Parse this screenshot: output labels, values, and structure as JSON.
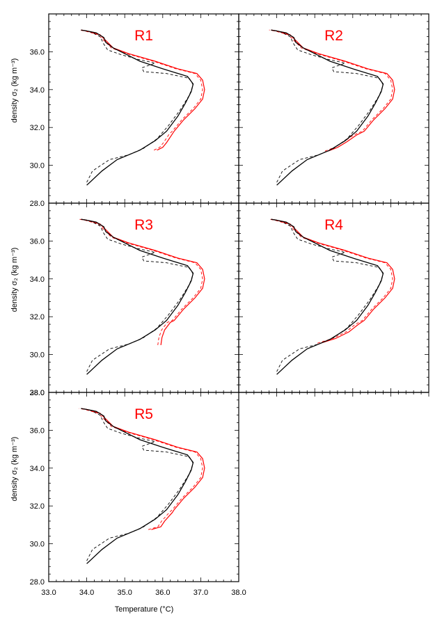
{
  "chart_data": {
    "type": "line",
    "xlabel": "Temperature (°C)",
    "ylabel": "density σ₂ (kg m⁻³)",
    "xlim": [
      33.0,
      38.0
    ],
    "ylim": [
      38.0,
      28.0
    ],
    "x_ticks": [
      "33.0",
      "34.0",
      "35.0",
      "36.0",
      "37.0",
      "38.0"
    ],
    "y_ticks": [
      "28.0",
      "30.0",
      "32.0",
      "34.0",
      "36.0",
      "38.0"
    ],
    "colors": {
      "observed": "#000000",
      "model": "#ff0000"
    },
    "panels": [
      {
        "label": "R1",
        "row": 0,
        "col": 0,
        "y_ticks_shown": [
          "28.0",
          "30.0",
          "32.0",
          "34.0",
          "36.0"
        ],
        "show_ylabel": true,
        "show_xlabels": false,
        "red_shift": 0.18,
        "red_top": [
          [
            35.85,
            30.8
          ],
          [
            36.0,
            30.95
          ],
          [
            36.1,
            31.2
          ],
          [
            36.25,
            31.65
          ]
        ]
      },
      {
        "label": "R2",
        "row": 0,
        "col": 1,
        "y_ticks_shown": [],
        "show_ylabel": false,
        "show_xlabels": false,
        "red_shift": 0.2,
        "red_top": [
          [
            35.35,
            30.75
          ],
          [
            35.6,
            30.95
          ],
          [
            35.85,
            31.25
          ],
          [
            36.1,
            31.6
          ]
        ]
      },
      {
        "label": "R3",
        "row": 1,
        "col": 0,
        "y_ticks_shown": [
          "28.0",
          "30.0",
          "32.0",
          "34.0",
          "36.0"
        ],
        "show_ylabel": true,
        "show_xlabels": false,
        "red_shift": 0.2,
        "red_top": [
          [
            35.95,
            30.5
          ],
          [
            35.98,
            30.9
          ],
          [
            36.05,
            31.3
          ],
          [
            36.2,
            31.7
          ]
        ]
      },
      {
        "label": "R4",
        "row": 1,
        "col": 1,
        "y_ticks_shown": [],
        "show_ylabel": false,
        "show_xlabels": false,
        "red_shift": 0.22,
        "red_top": [
          [
            35.15,
            30.6
          ],
          [
            35.55,
            30.85
          ],
          [
            35.9,
            31.2
          ],
          [
            36.15,
            31.6
          ]
        ]
      },
      {
        "label": "R5",
        "row": 2,
        "col": 0,
        "y_ticks_shown": [
          "28.0",
          "30.0",
          "32.0",
          "34.0",
          "36.0",
          "38.0"
        ],
        "show_ylabel": true,
        "show_xlabels": true,
        "red_shift": 0.18,
        "red_top": [
          [
            35.7,
            30.75
          ],
          [
            35.95,
            30.9
          ],
          [
            36.05,
            31.2
          ],
          [
            36.25,
            31.65
          ]
        ]
      }
    ],
    "black_profile": [
      [
        34.0,
        28.95
      ],
      [
        34.4,
        29.7
      ],
      [
        34.8,
        30.3
      ],
      [
        35.4,
        30.8
      ],
      [
        35.8,
        31.3
      ],
      [
        36.1,
        31.8
      ],
      [
        36.4,
        32.6
      ],
      [
        36.6,
        33.3
      ],
      [
        36.75,
        33.9
      ],
      [
        36.8,
        34.3
      ],
      [
        36.65,
        34.7
      ],
      [
        36.0,
        35.1
      ],
      [
        35.4,
        35.5
      ],
      [
        35.0,
        35.9
      ],
      [
        34.7,
        36.2
      ],
      [
        34.5,
        36.5
      ],
      [
        34.45,
        36.75
      ],
      [
        34.25,
        37.0
      ],
      [
        34.0,
        37.1
      ],
      [
        33.85,
        37.15
      ]
    ],
    "black_dashed": [
      [
        34.0,
        29.1
      ],
      [
        34.15,
        29.7
      ],
      [
        34.6,
        30.3
      ],
      [
        35.1,
        30.55
      ],
      [
        35.5,
        30.9
      ],
      [
        35.85,
        31.4
      ],
      [
        36.15,
        32.1
      ],
      [
        36.45,
        32.9
      ],
      [
        36.7,
        33.7
      ],
      [
        36.8,
        34.25
      ],
      [
        36.7,
        34.6
      ],
      [
        36.1,
        34.85
      ],
      [
        35.5,
        34.95
      ],
      [
        35.45,
        35.15
      ],
      [
        35.8,
        35.4
      ],
      [
        35.35,
        35.6
      ],
      [
        34.9,
        35.85
      ],
      [
        34.55,
        36.1
      ],
      [
        34.45,
        36.4
      ],
      [
        34.35,
        36.8
      ],
      [
        34.1,
        37.05
      ],
      [
        33.9,
        37.15
      ]
    ],
    "red_lower": [
      [
        36.3,
        31.8
      ],
      [
        36.55,
        32.4
      ],
      [
        36.85,
        33.0
      ],
      [
        37.05,
        33.5
      ],
      [
        37.1,
        34.0
      ],
      [
        37.05,
        34.5
      ],
      [
        36.9,
        34.85
      ],
      [
        36.4,
        35.1
      ],
      [
        35.8,
        35.5
      ],
      [
        35.1,
        35.9
      ],
      [
        34.7,
        36.2
      ],
      [
        34.55,
        36.5
      ],
      [
        34.35,
        36.9
      ],
      [
        34.0,
        37.1
      ],
      [
        33.85,
        37.15
      ]
    ]
  }
}
